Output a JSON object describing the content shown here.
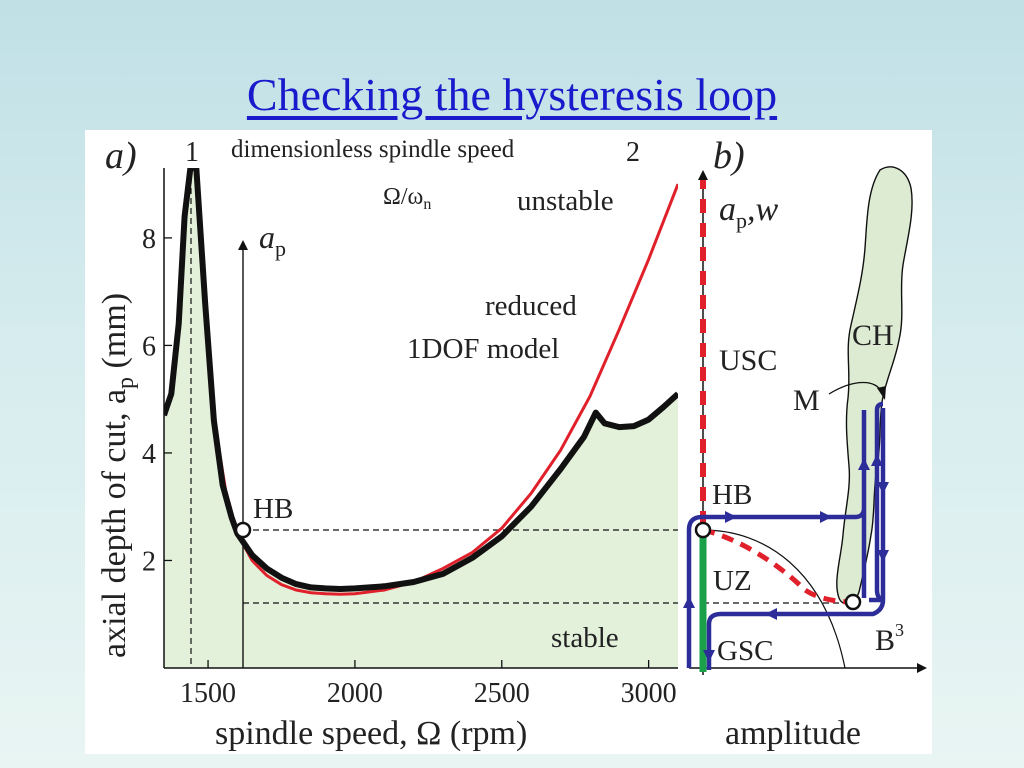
{
  "slide": {
    "title": "Checking the hysteresis loop"
  },
  "colors": {
    "title": "#1a1acc",
    "background": "#cfe7ea",
    "stable_fill": "#e3f0da",
    "experiment_curve": "#111111",
    "model_curve": "#e0202a",
    "path_blue": "#2d2d9a",
    "unstable_branch": "#e0202a",
    "stable_branch": "#1aa04a",
    "ch_fill": "#dcebd2"
  },
  "panel_a": {
    "label": "a)",
    "x_axis_label": "spindle speed, Ω (rpm)",
    "y_axis_label": "axial depth of cut, a",
    "y_axis_label_sub": "p",
    "y_axis_label_unit": " (mm)",
    "top_axis_label": "dimensionless spindle speed",
    "top_ratio": "Ω/ω",
    "top_ratio_sub": "n",
    "top_tick_1": "1",
    "top_tick_2": "2",
    "region_unstable": "unstable",
    "region_stable": "stable",
    "model_label_line1": "reduced",
    "model_label_line2": "1DOF model",
    "hb_label": "HB",
    "inset_axis_label": "a",
    "inset_axis_label_sub": "p",
    "x_ticks": [
      "1500",
      "2000",
      "2500",
      "3000"
    ],
    "y_ticks": [
      "2",
      "4",
      "6",
      "8"
    ]
  },
  "panel_b": {
    "label": "b)",
    "y_axis_label": "a",
    "y_axis_label_sub": "p",
    "y_axis_label_rest": ",w",
    "x_axis_label": "amplitude",
    "usc_label": "USC",
    "gsc_label": "GSC",
    "uz_label": "UZ",
    "hb_label": "HB",
    "ch_label": "CH",
    "m_label": "M",
    "b3_label": "B",
    "b3_sup": "3"
  },
  "chart_data": {
    "type": "line",
    "xlabel": "spindle speed, Ω (rpm)",
    "ylabel": "axial depth of cut, ap (mm)",
    "xlim": [
      1350,
      3100
    ],
    "ylim": [
      0,
      9.3
    ],
    "x_ticks": [
      1500,
      2000,
      2500,
      3000
    ],
    "y_ticks": [
      2,
      4,
      6,
      8
    ],
    "series": [
      {
        "x": [
          1350,
          1375,
          1400,
          1420,
          1440,
          1460,
          1490,
          1520,
          1550,
          1580,
          1600,
          1650,
          1700,
          1750,
          1800,
          1850,
          1900,
          1950,
          2000,
          2100,
          2200,
          2300,
          2400,
          2500,
          2600,
          2700,
          2780,
          2820,
          2850,
          2900,
          2950,
          3000,
          3050,
          3100
        ],
        "y": [
          4.7,
          5.1,
          6.4,
          8.4,
          9.3,
          9.3,
          6.8,
          4.6,
          3.4,
          2.8,
          2.5,
          2.1,
          1.85,
          1.68,
          1.56,
          1.5,
          1.48,
          1.47,
          1.48,
          1.52,
          1.6,
          1.75,
          2.05,
          2.45,
          3.0,
          3.7,
          4.3,
          4.75,
          4.55,
          4.48,
          4.5,
          4.62,
          4.85,
          5.1
        ]
      },
      {
        "x": [
          1460,
          1480,
          1500,
          1530,
          1560,
          1600,
          1650,
          1700,
          1750,
          1800,
          1850,
          1900,
          1950,
          2000,
          2100,
          2200,
          2300,
          2400,
          2500,
          2600,
          2700,
          2800,
          2900,
          3000,
          3100
        ],
        "y": [
          9.3,
          7.4,
          5.8,
          4.3,
          3.3,
          2.5,
          2.0,
          1.72,
          1.55,
          1.45,
          1.4,
          1.38,
          1.37,
          1.38,
          1.45,
          1.6,
          1.85,
          2.15,
          2.6,
          3.25,
          4.05,
          5.05,
          6.3,
          7.6,
          9.0
        ]
      }
    ],
    "markers": [
      {
        "label": "HB",
        "x": 1600,
        "y": 2.52
      }
    ],
    "reference_lines": {
      "horizontal": [
        2.52,
        1.22
      ],
      "vertical": [
        1440,
        1600
      ]
    }
  }
}
